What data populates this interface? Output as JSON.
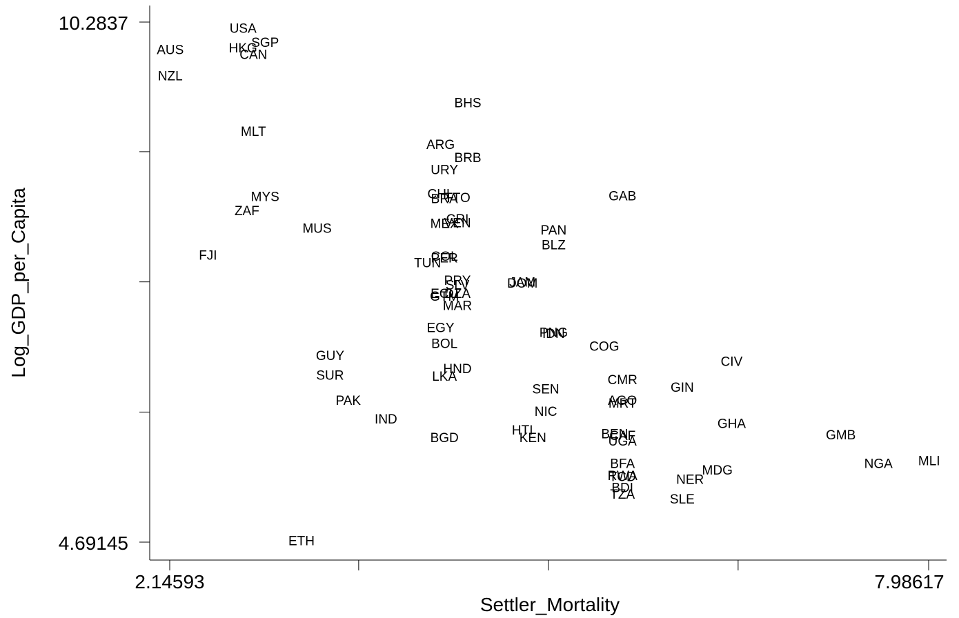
{
  "chart_data": {
    "type": "scatter",
    "title": "",
    "xlabel": "Settler_Mortality",
    "ylabel": "Log_GDP_per_Capita",
    "xlim": [
      2.14593,
      7.98617
    ],
    "ylim": [
      4.69145,
      10.2837
    ],
    "x_tick_labels": [
      "2.14593",
      "7.98617"
    ],
    "y_tick_labels": [
      "10.2837",
      "4.69145"
    ],
    "x_ticks": [
      2.14593,
      3.6,
      5.06,
      6.52,
      7.98617
    ],
    "y_ticks": [
      4.69145,
      6.09,
      7.49,
      8.89,
      10.2837
    ],
    "grid": false,
    "marker": "country-code-label",
    "points": [
      {
        "label": "USA",
        "x": 2.71,
        "y": 10.22
      },
      {
        "label": "SGP",
        "x": 2.88,
        "y": 10.07
      },
      {
        "label": "AUS",
        "x": 2.15,
        "y": 9.99
      },
      {
        "label": "HKG",
        "x": 2.71,
        "y": 10.01
      },
      {
        "label": "CAN",
        "x": 2.79,
        "y": 9.94
      },
      {
        "label": "NZL",
        "x": 2.15,
        "y": 9.71
      },
      {
        "label": "MLT",
        "x": 2.79,
        "y": 9.11
      },
      {
        "label": "BHS",
        "x": 4.44,
        "y": 9.42
      },
      {
        "label": "ARG",
        "x": 4.23,
        "y": 8.97
      },
      {
        "label": "BRB",
        "x": 4.44,
        "y": 8.83
      },
      {
        "label": "URY",
        "x": 4.26,
        "y": 8.7
      },
      {
        "label": "CHL",
        "x": 4.23,
        "y": 8.44
      },
      {
        "label": "BRA",
        "x": 4.26,
        "y": 8.39
      },
      {
        "label": "TTO",
        "x": 4.36,
        "y": 8.4
      },
      {
        "label": "GAB",
        "x": 5.63,
        "y": 8.42
      },
      {
        "label": "MYS",
        "x": 2.88,
        "y": 8.41
      },
      {
        "label": "ZAF",
        "x": 2.74,
        "y": 8.26
      },
      {
        "label": "CRI",
        "x": 4.36,
        "y": 8.17
      },
      {
        "label": "VEN",
        "x": 4.36,
        "y": 8.13
      },
      {
        "label": "MEX",
        "x": 4.26,
        "y": 8.12
      },
      {
        "label": "MUS",
        "x": 3.28,
        "y": 8.07
      },
      {
        "label": "PAN",
        "x": 5.1,
        "y": 8.05
      },
      {
        "label": "BLZ",
        "x": 5.1,
        "y": 7.89
      },
      {
        "label": "FJI",
        "x": 2.44,
        "y": 7.78
      },
      {
        "label": "COL",
        "x": 4.26,
        "y": 7.77
      },
      {
        "label": "PER",
        "x": 4.26,
        "y": 7.75
      },
      {
        "label": "TUN",
        "x": 4.13,
        "y": 7.7
      },
      {
        "label": "PRY",
        "x": 4.36,
        "y": 7.51
      },
      {
        "label": "SLV",
        "x": 4.36,
        "y": 7.46
      },
      {
        "label": "JAM",
        "x": 4.86,
        "y": 7.49
      },
      {
        "label": "DOM",
        "x": 4.86,
        "y": 7.48
      },
      {
        "label": "ECU",
        "x": 4.26,
        "y": 7.37
      },
      {
        "label": "GTM",
        "x": 4.26,
        "y": 7.34
      },
      {
        "label": "DZA",
        "x": 4.36,
        "y": 7.37
      },
      {
        "label": "MAR",
        "x": 4.36,
        "y": 7.24
      },
      {
        "label": "EGY",
        "x": 4.23,
        "y": 7.0
      },
      {
        "label": "PNG",
        "x": 5.1,
        "y": 6.95
      },
      {
        "label": "IDN",
        "x": 5.1,
        "y": 6.94
      },
      {
        "label": "BOL",
        "x": 4.26,
        "y": 6.83
      },
      {
        "label": "COG",
        "x": 5.49,
        "y": 6.8
      },
      {
        "label": "GUY",
        "x": 3.38,
        "y": 6.7
      },
      {
        "label": "CIV",
        "x": 6.47,
        "y": 6.64
      },
      {
        "label": "HND",
        "x": 4.36,
        "y": 6.56
      },
      {
        "label": "SUR",
        "x": 3.38,
        "y": 6.49
      },
      {
        "label": "LKA",
        "x": 4.26,
        "y": 6.48
      },
      {
        "label": "CMR",
        "x": 5.63,
        "y": 6.44
      },
      {
        "label": "GIN",
        "x": 6.09,
        "y": 6.36
      },
      {
        "label": "SEN",
        "x": 5.04,
        "y": 6.34
      },
      {
        "label": "AGO",
        "x": 5.63,
        "y": 6.22
      },
      {
        "label": "MRT",
        "x": 5.63,
        "y": 6.19
      },
      {
        "label": "PAK",
        "x": 3.52,
        "y": 6.22
      },
      {
        "label": "NIC",
        "x": 5.04,
        "y": 6.1
      },
      {
        "label": "IND",
        "x": 3.81,
        "y": 6.02
      },
      {
        "label": "GHA",
        "x": 6.47,
        "y": 5.97
      },
      {
        "label": "HTI",
        "x": 4.86,
        "y": 5.9
      },
      {
        "label": "KEN",
        "x": 4.94,
        "y": 5.82
      },
      {
        "label": "BEN",
        "x": 5.57,
        "y": 5.86
      },
      {
        "label": "CAF",
        "x": 5.63,
        "y": 5.84
      },
      {
        "label": "UGA",
        "x": 5.63,
        "y": 5.78
      },
      {
        "label": "BGD",
        "x": 4.26,
        "y": 5.82
      },
      {
        "label": "GMB",
        "x": 7.31,
        "y": 5.85
      },
      {
        "label": "NGA",
        "x": 7.6,
        "y": 5.54
      },
      {
        "label": "MLI",
        "x": 7.99,
        "y": 5.57
      },
      {
        "label": "BFA",
        "x": 5.63,
        "y": 5.54
      },
      {
        "label": "MDG",
        "x": 6.36,
        "y": 5.47
      },
      {
        "label": "RWA",
        "x": 5.63,
        "y": 5.41
      },
      {
        "label": "TCD",
        "x": 5.63,
        "y": 5.4
      },
      {
        "label": "NER",
        "x": 6.15,
        "y": 5.37
      },
      {
        "label": "BDI",
        "x": 5.63,
        "y": 5.28
      },
      {
        "label": "TZA",
        "x": 5.63,
        "y": 5.21
      },
      {
        "label": "SLE",
        "x": 6.09,
        "y": 5.16
      },
      {
        "label": "ETH",
        "x": 3.16,
        "y": 4.71
      }
    ]
  }
}
